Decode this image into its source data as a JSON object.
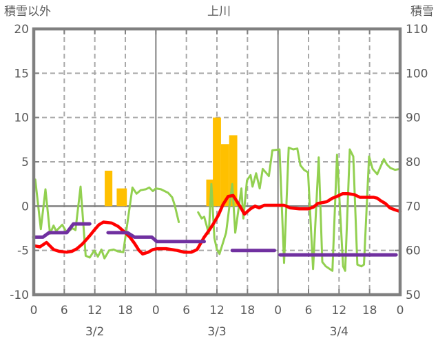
{
  "header": {
    "left_axis_title": "積雪以外",
    "chart_title": "上川",
    "right_axis_title": "積雪"
  },
  "colors": {
    "red": "#ff0000",
    "green": "#92d050",
    "purple": "#7030a0",
    "orange": "#ffc000",
    "grid": "#a8a8a8",
    "axis": "#808080",
    "text": "#595959",
    "background": "#ffffff"
  },
  "chart_data": {
    "type": "line",
    "title": "上川",
    "x_unit": "hours since 3/2 00:00",
    "x_range": [
      0,
      72
    ],
    "grid": "dashed at 6h/12h/18h and every 5 left-units; solid at day boundaries and 0-line",
    "x_axis": {
      "hour_tick_step": 6,
      "hour_labels": [
        "0",
        "6",
        "12",
        "18",
        "0",
        "6",
        "12",
        "18",
        "0",
        "6",
        "12",
        "18",
        "0"
      ],
      "day_labels": [
        "3/2",
        "3/3",
        "3/4"
      ]
    },
    "left_axis": {
      "title": "積雪以外",
      "range": [
        -10,
        20
      ],
      "ticks": [
        20,
        15,
        10,
        5,
        0,
        -5,
        -10
      ]
    },
    "right_axis": {
      "title": "積雪",
      "range": [
        50,
        110
      ],
      "ticks": [
        110,
        100,
        90,
        80,
        70,
        60,
        50
      ]
    },
    "series": [
      {
        "id": "orange-bars",
        "type": "bar",
        "color_key": "orange",
        "axis": "left",
        "point_format": [
          "hour_center",
          "value",
          "width_hours"
        ],
        "points": [
          [
            14.7,
            4,
            1.5
          ],
          [
            17.3,
            2,
            2.0
          ],
          [
            34.6,
            3,
            1.4
          ],
          [
            36.0,
            10,
            1.6
          ],
          [
            37.6,
            7,
            1.6
          ],
          [
            39.2,
            8,
            1.6
          ]
        ]
      },
      {
        "id": "green-line",
        "type": "line",
        "color_key": "green",
        "axis": "left",
        "width": 3,
        "segments": [
          [
            [
              0.3,
              3
            ],
            [
              1.4,
              -2.6
            ],
            [
              2.3,
              1.9
            ],
            [
              3.2,
              -3.1
            ],
            [
              3.9,
              -2.2
            ],
            [
              4.4,
              -2.8
            ],
            [
              5.6,
              -2.1
            ],
            [
              6.5,
              -3
            ],
            [
              7.6,
              -2.5
            ],
            [
              8.2,
              -2.7
            ],
            [
              9.2,
              2.2
            ],
            [
              10.2,
              -5.6
            ],
            [
              11,
              -5.8
            ],
            [
              11.9,
              -5
            ],
            [
              12.6,
              -5.7
            ],
            [
              13.3,
              -4.9
            ],
            [
              13.9,
              -5.9
            ],
            [
              14.8,
              -5
            ],
            [
              15.7,
              -4.9
            ],
            [
              16.5,
              -5.1
            ],
            [
              17.6,
              -5.2
            ],
            [
              19.4,
              2.1
            ],
            [
              20.2,
              1.4
            ],
            [
              21,
              1.8
            ],
            [
              22,
              1.9
            ],
            [
              22.7,
              2.1
            ],
            [
              23.4,
              1.7
            ],
            [
              24,
              2
            ],
            [
              25,
              1.9
            ],
            [
              26.4,
              1.5
            ],
            [
              27.2,
              1
            ],
            [
              27.7,
              0.1
            ],
            [
              28.5,
              -1.8
            ]
          ],
          [
            [
              32.3,
              -0.7
            ],
            [
              33,
              -1.4
            ],
            [
              33.5,
              -1.2
            ],
            [
              34.4,
              -3.1
            ],
            [
              34.9,
              2.5
            ],
            [
              35.5,
              -3.6
            ],
            [
              36,
              -4.9
            ],
            [
              36.5,
              -5.4
            ],
            [
              37.8,
              -3
            ],
            [
              39,
              2.5
            ],
            [
              39.6,
              -3
            ],
            [
              40.8,
              2
            ],
            [
              41.2,
              -1.4
            ],
            [
              41.9,
              2.9
            ],
            [
              42.6,
              3.5
            ],
            [
              43,
              2.2
            ],
            [
              43.7,
              3.7
            ],
            [
              44.4,
              2
            ],
            [
              45,
              4.2
            ],
            [
              46.2,
              3.4
            ],
            [
              46.9,
              6.3
            ],
            [
              48.3,
              6.4
            ],
            [
              49.2,
              -6.4
            ],
            [
              50.1,
              6.6
            ],
            [
              51,
              6.4
            ],
            [
              51.8,
              6.5
            ],
            [
              52.4,
              4.6
            ],
            [
              53.1,
              4.1
            ],
            [
              53.9,
              3.8
            ],
            [
              54.9,
              -7.1
            ],
            [
              56,
              5.5
            ],
            [
              56.7,
              -6.3
            ],
            [
              57.4,
              -6.8
            ],
            [
              58.7,
              -7.3
            ],
            [
              59.6,
              5.8
            ],
            [
              60.8,
              -6.8
            ],
            [
              61.2,
              -7.3
            ],
            [
              62.1,
              6.4
            ],
            [
              62.8,
              5.6
            ],
            [
              63.6,
              -6.6
            ],
            [
              64.4,
              -6.8
            ],
            [
              64.9,
              -6.6
            ],
            [
              65.9,
              5.6
            ],
            [
              66.6,
              4.2
            ],
            [
              67.5,
              3.6
            ],
            [
              68.8,
              5.3
            ],
            [
              69.4,
              4.7
            ],
            [
              70.1,
              4.3
            ],
            [
              71,
              4.1
            ],
            [
              72,
              4.2
            ]
          ]
        ]
      },
      {
        "id": "red-line",
        "type": "line",
        "color_key": "red",
        "axis": "left",
        "width": 4.5,
        "segments": [
          [
            [
              0.3,
              -4.5
            ],
            [
              1.2,
              -4.6
            ],
            [
              2.5,
              -4.1
            ],
            [
              3.2,
              -4.5
            ],
            [
              3.9,
              -4.9
            ],
            [
              5,
              -5.1
            ],
            [
              6.5,
              -5.2
            ],
            [
              7.5,
              -5.1
            ],
            [
              8.5,
              -4.8
            ],
            [
              9.5,
              -4.3
            ],
            [
              10.3,
              -3.8
            ],
            [
              11.2,
              -3.2
            ],
            [
              11.9,
              -2.7
            ],
            [
              12.8,
              -2.1
            ],
            [
              13.7,
              -1.8
            ],
            [
              15.3,
              -1.9
            ],
            [
              16.6,
              -2.3
            ],
            [
              18,
              -3
            ],
            [
              18.9,
              -3.5
            ],
            [
              19.8,
              -4.2
            ],
            [
              20.7,
              -5
            ],
            [
              21.4,
              -5.4
            ],
            [
              22.5,
              -5.2
            ],
            [
              23.4,
              -4.9
            ],
            [
              24.3,
              -4.8
            ],
            [
              26,
              -4.8
            ],
            [
              28.2,
              -5
            ],
            [
              29.5,
              -5.2
            ],
            [
              31,
              -5.2
            ],
            [
              32.1,
              -4.9
            ],
            [
              33.5,
              -3.5
            ],
            [
              34.5,
              -2.7
            ],
            [
              35.4,
              -1.9
            ],
            [
              36.3,
              -1
            ],
            [
              37.2,
              0.2
            ],
            [
              38.2,
              1.1
            ],
            [
              39.2,
              1.2
            ],
            [
              40.5,
              0
            ],
            [
              41.4,
              -0.9
            ],
            [
              42.6,
              -0.3
            ],
            [
              43.5,
              0
            ],
            [
              44.3,
              -0.2
            ],
            [
              45.3,
              0.1
            ],
            [
              46.6,
              0.1
            ],
            [
              48,
              0.1
            ],
            [
              49.2,
              0.1
            ],
            [
              50.4,
              -0.2
            ],
            [
              52.2,
              -0.3
            ],
            [
              54,
              -0.3
            ],
            [
              55,
              -0.1
            ],
            [
              55.8,
              0.3
            ],
            [
              56.7,
              0.4
            ],
            [
              57.6,
              0.5
            ],
            [
              58.7,
              0.9
            ],
            [
              59.6,
              1.1
            ],
            [
              60.7,
              1.4
            ],
            [
              61.8,
              1.4
            ],
            [
              63,
              1.3
            ],
            [
              64.1,
              1
            ],
            [
              66.8,
              1
            ],
            [
              67.5,
              0.9
            ],
            [
              68.2,
              0.6
            ],
            [
              69.1,
              0.3
            ],
            [
              70,
              -0.2
            ],
            [
              70.9,
              -0.4
            ],
            [
              72,
              -0.6
            ]
          ]
        ]
      },
      {
        "id": "purple-line",
        "type": "line",
        "color_key": "purple",
        "axis": "right",
        "width": 5,
        "segments": [
          [
            [
              0,
              63
            ],
            [
              1.8,
              63
            ],
            [
              3,
              64
            ],
            [
              6.5,
              64
            ],
            [
              7.8,
              66
            ],
            [
              11,
              66
            ]
          ],
          [
            [
              14.6,
              64
            ],
            [
              18.4,
              64
            ],
            [
              19.8,
              63
            ],
            [
              23.2,
              63
            ],
            [
              24.2,
              62
            ],
            [
              33.5,
              62
            ]
          ],
          [
            [
              39,
              60
            ],
            [
              47.3,
              60
            ]
          ],
          [
            [
              48.4,
              59
            ],
            [
              71.2,
              59
            ]
          ]
        ]
      }
    ]
  }
}
